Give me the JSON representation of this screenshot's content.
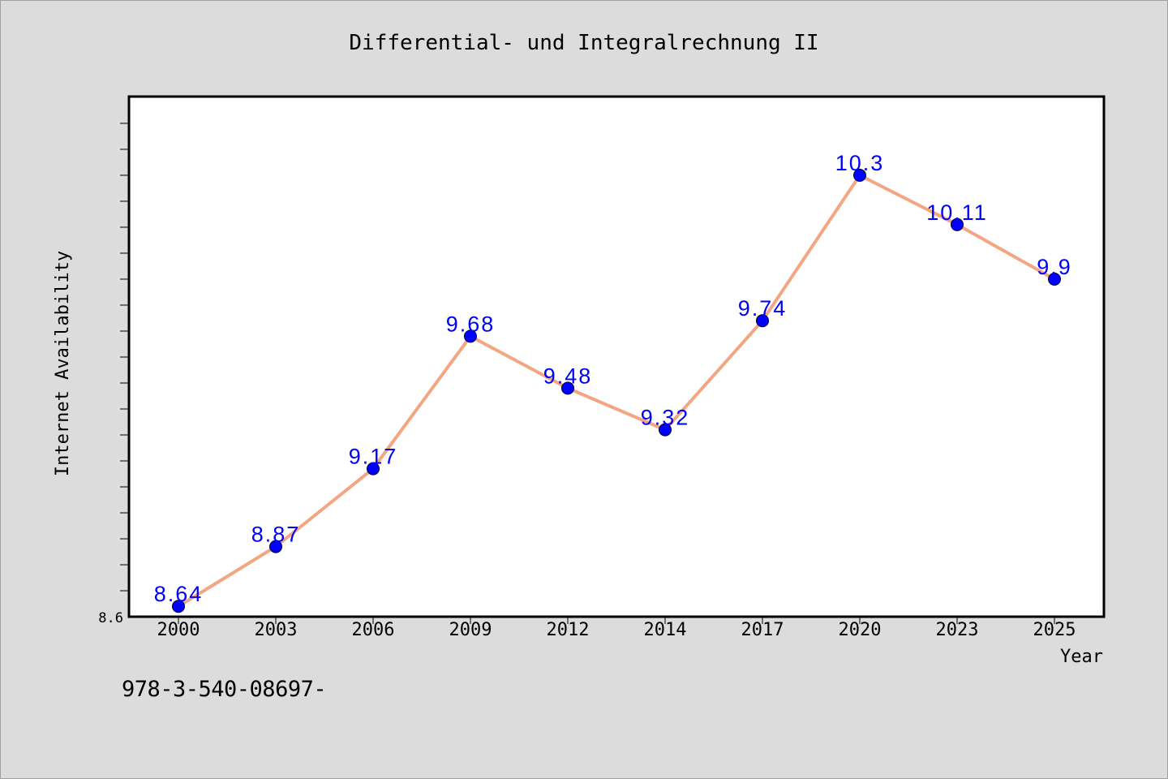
{
  "chart_data": {
    "type": "line",
    "title": "Differential- und Integralrechnung II",
    "xlabel": "Year",
    "ylabel": "Internet Availability",
    "categories": [
      "2000",
      "2003",
      "2006",
      "2009",
      "2012",
      "2014",
      "2017",
      "2020",
      "2023",
      "2025"
    ],
    "series": [
      {
        "values": [
          8.64,
          8.87,
          9.17,
          9.68,
          9.48,
          9.32,
          9.74,
          10.3,
          10.11,
          9.9
        ],
        "line_color": "#f4a582",
        "marker_color": "#0000ff",
        "label_color": "#0000ff"
      }
    ],
    "data_labels": [
      "8.64",
      "8.87",
      "9.17",
      "9.68",
      "9.48",
      "9.32",
      "9.74",
      "10.3",
      "10.11",
      "9.9"
    ],
    "y_tick_labels": [
      "8.6"
    ],
    "ylim": [
      8.6,
      10.6
    ],
    "grid": false,
    "plot_background": "#ffffff",
    "page_background": "#dcdcdc"
  },
  "footer": {
    "text": "978-3-540-08697-"
  }
}
